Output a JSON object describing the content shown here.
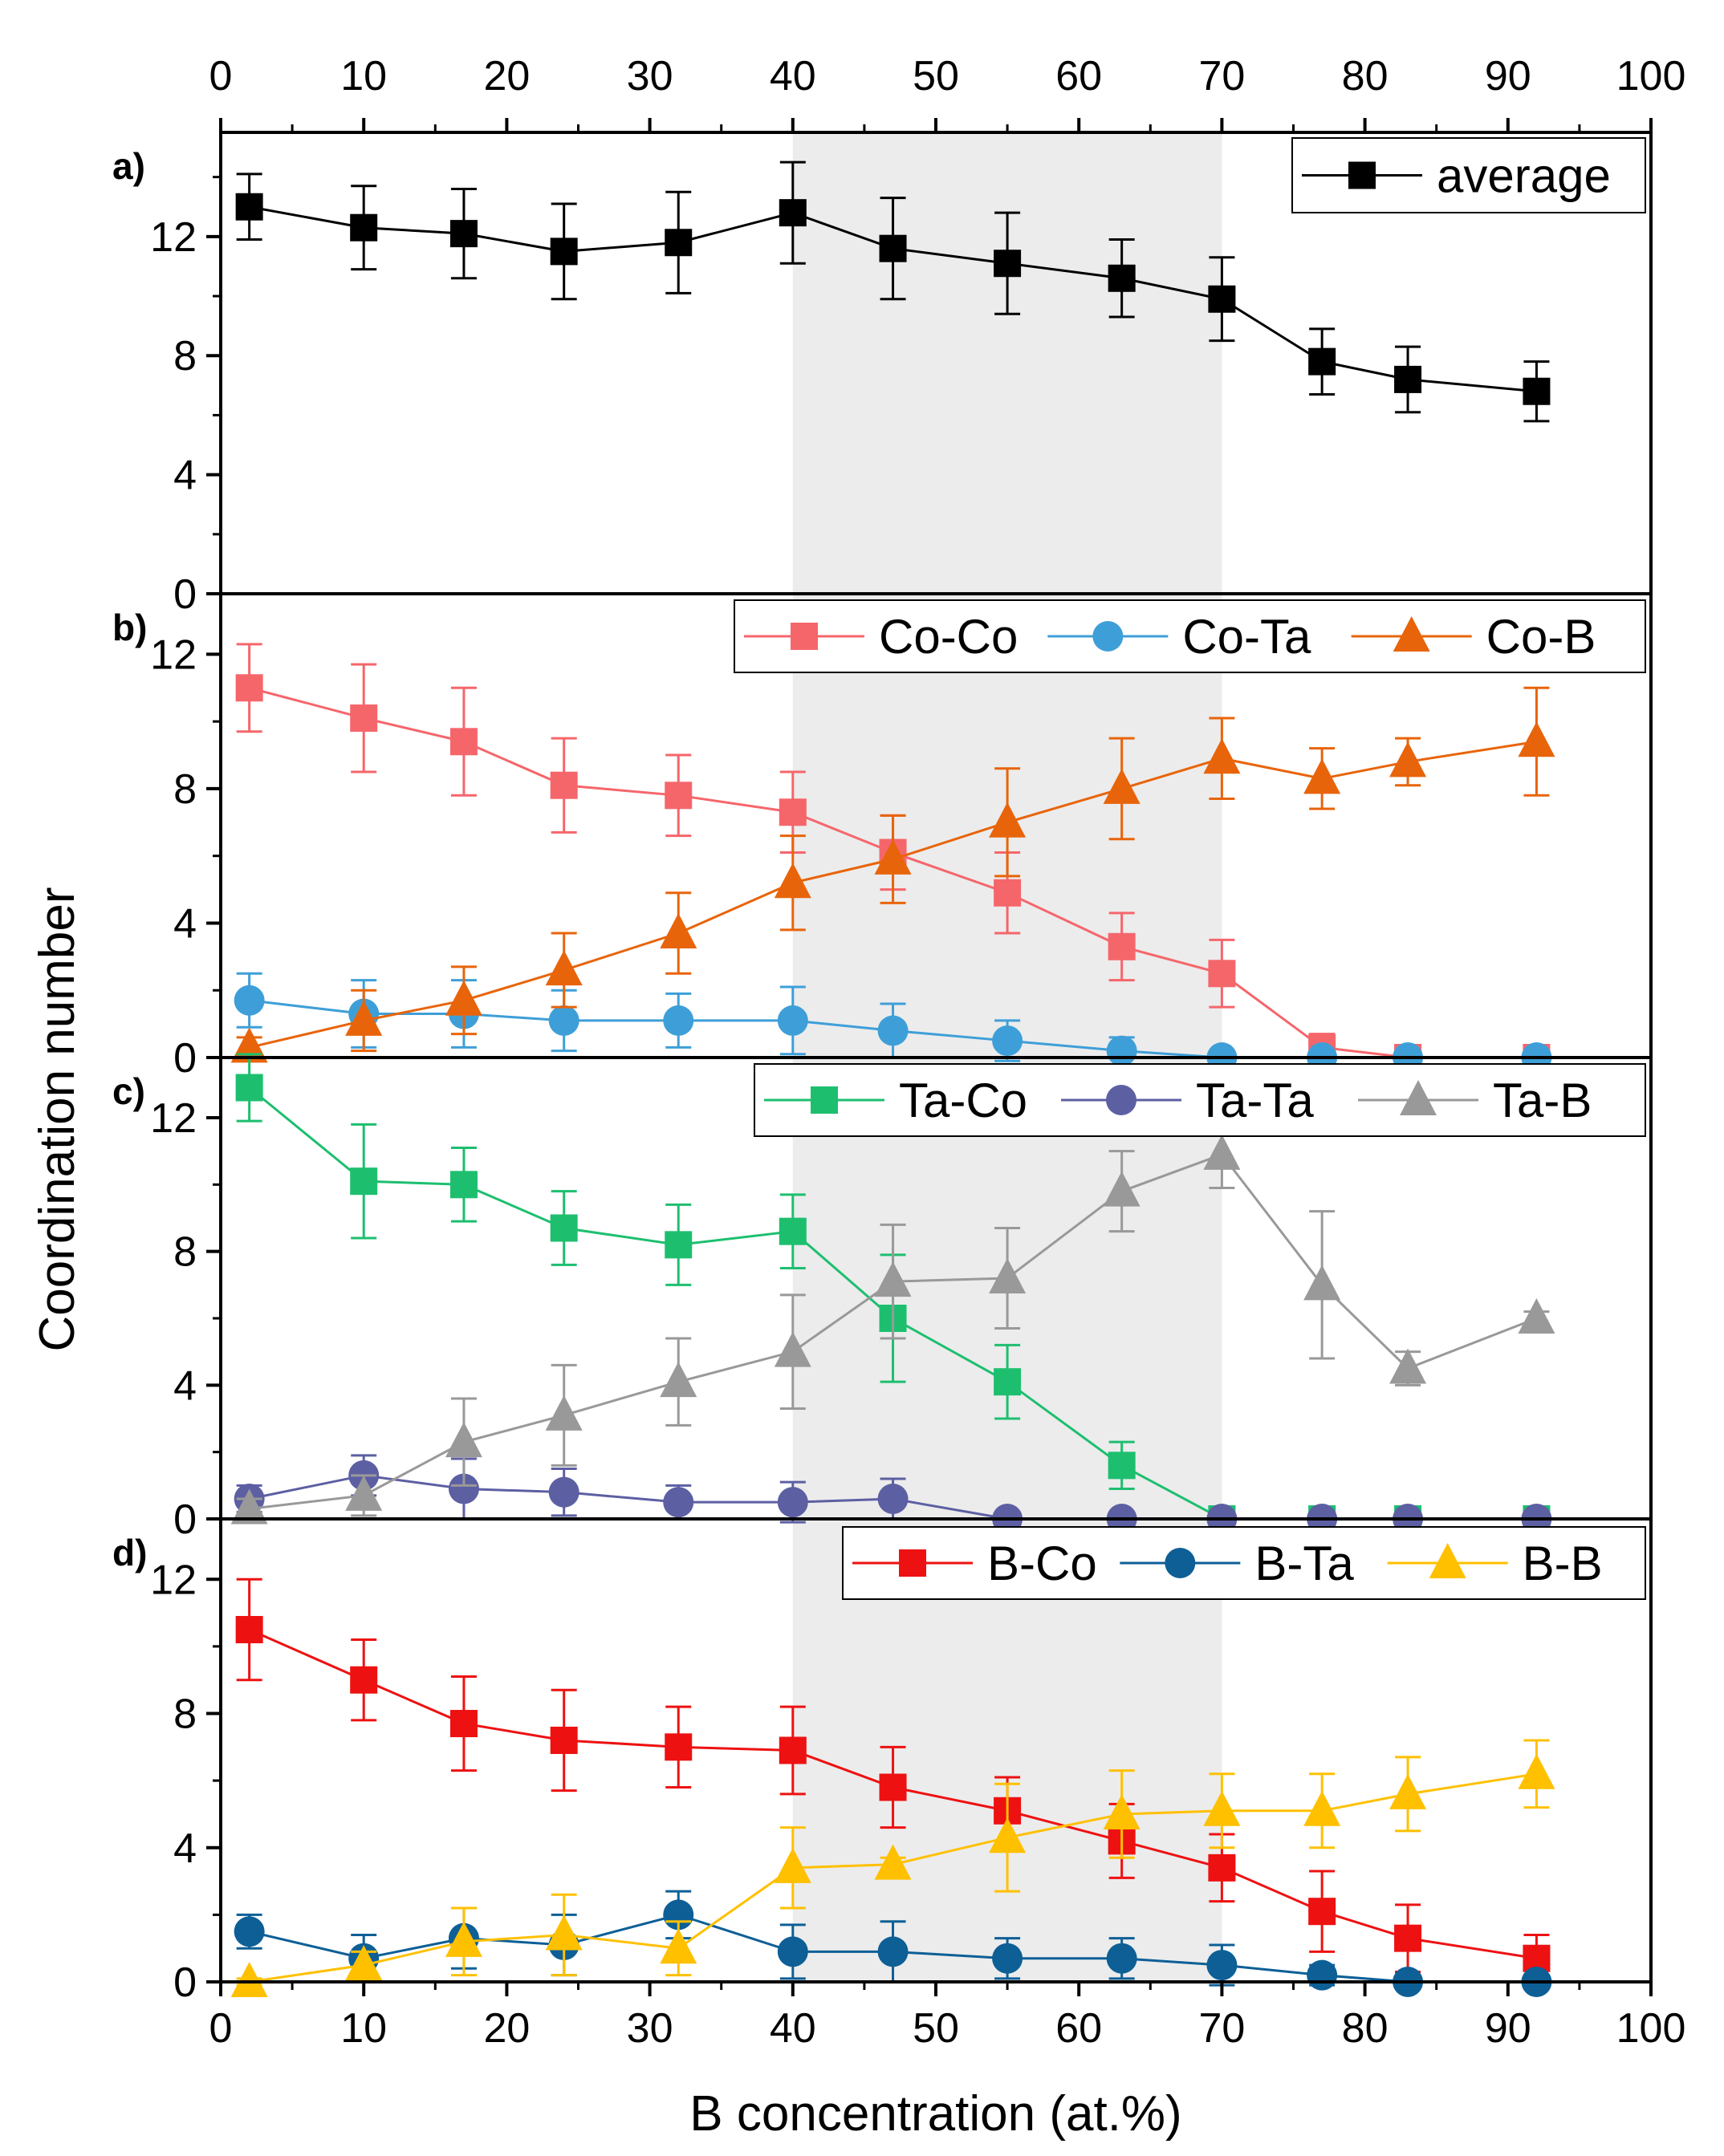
{
  "chart_data": {
    "type": "line",
    "xlabel": "B concentration (at.%)",
    "ylabel": "Coordination number",
    "xlim": [
      0,
      100
    ],
    "x_ticks": [
      0,
      10,
      20,
      30,
      40,
      50,
      60,
      70,
      80,
      90,
      100
    ],
    "x": [
      2,
      10,
      17,
      24,
      32,
      40,
      47,
      55,
      63,
      70,
      77,
      83,
      92
    ],
    "shaded_region": [
      40,
      70
    ],
    "panels": [
      {
        "label": "a)",
        "ylim": [
          0,
          15.5
        ],
        "y_ticks": [
          0,
          4,
          8,
          12
        ],
        "series": [
          {
            "name": "average",
            "color": "#000000",
            "marker": "square",
            "values": [
              13.0,
              12.3,
              12.1,
              11.5,
              11.8,
              12.8,
              11.6,
              11.1,
              10.6,
              9.9,
              7.8,
              7.2,
              6.8
            ],
            "errors": [
              1.1,
              1.4,
              1.5,
              1.6,
              1.7,
              1.7,
              1.7,
              1.7,
              1.3,
              1.4,
              1.1,
              1.1,
              1.0
            ]
          }
        ]
      },
      {
        "label": "b)",
        "ylim": [
          0,
          13.8
        ],
        "y_ticks": [
          0,
          4,
          8,
          12
        ],
        "series": [
          {
            "name": "Co-Co",
            "color": "#f5666b",
            "marker": "square",
            "values": [
              11.0,
              10.1,
              9.4,
              8.1,
              7.8,
              7.3,
              6.1,
              4.9,
              3.3,
              2.5,
              0.3,
              0.0,
              0.0
            ],
            "errors": [
              1.3,
              1.6,
              1.6,
              1.4,
              1.2,
              1.2,
              1.1,
              1.2,
              1.0,
              1.0,
              0.4,
              0.1,
              0.1
            ]
          },
          {
            "name": "Co-Ta",
            "color": "#3e9fd8",
            "marker": "circle",
            "values": [
              1.7,
              1.3,
              1.3,
              1.1,
              1.1,
              1.1,
              0.8,
              0.5,
              0.2,
              0.0,
              0.0,
              0.0,
              0.0
            ],
            "errors": [
              0.8,
              1.0,
              1.0,
              0.9,
              0.8,
              1.0,
              0.8,
              0.6,
              0.4,
              0.1,
              0.1,
              0.1,
              0.1
            ]
          },
          {
            "name": "Co-B",
            "color": "#e8640a",
            "marker": "triangle",
            "values": [
              0.3,
              1.1,
              1.7,
              2.6,
              3.7,
              5.2,
              5.9,
              7.0,
              8.0,
              8.9,
              8.3,
              8.8,
              9.4
            ],
            "errors": [
              0.3,
              0.9,
              1.0,
              1.1,
              1.2,
              1.4,
              1.3,
              1.6,
              1.5,
              1.2,
              0.9,
              0.7,
              1.6
            ]
          }
        ]
      },
      {
        "label": "c)",
        "ylim": [
          0,
          13.8
        ],
        "y_ticks": [
          0,
          4,
          8,
          12
        ],
        "series": [
          {
            "name": "Ta-Co",
            "color": "#1dbf6f",
            "marker": "square",
            "values": [
              12.9,
              10.1,
              10.0,
              8.7,
              8.2,
              8.6,
              6.0,
              4.1,
              1.6,
              0.0,
              0.0,
              0.0,
              0.0
            ],
            "errors": [
              1.0,
              1.7,
              1.1,
              1.1,
              1.2,
              1.1,
              1.9,
              1.1,
              0.7,
              0.1,
              0.1,
              0.1,
              0.1
            ]
          },
          {
            "name": "Ta-Ta",
            "color": "#5d5fa3",
            "marker": "circle",
            "values": [
              0.6,
              1.3,
              0.9,
              0.8,
              0.5,
              0.5,
              0.6,
              0.0,
              0.0,
              0.0,
              0.0,
              0.0,
              0.0
            ],
            "errors": [
              0.4,
              0.6,
              0.9,
              0.7,
              0.5,
              0.6,
              0.6,
              0.1,
              0.1,
              0.1,
              0.1,
              0.1,
              0.1
            ]
          },
          {
            "name": "Ta-B",
            "color": "#999999",
            "marker": "triangle",
            "values": [
              0.3,
              0.7,
              2.3,
              3.1,
              4.1,
              5.0,
              7.1,
              7.2,
              9.8,
              10.9,
              7.0,
              4.5,
              6.0
            ],
            "errors": [
              0.3,
              0.6,
              1.3,
              1.5,
              1.3,
              1.7,
              1.7,
              1.5,
              1.2,
              1.0,
              2.2,
              0.5,
              0.2
            ]
          }
        ]
      },
      {
        "label": "d)",
        "ylim": [
          0,
          13.8
        ],
        "y_ticks": [
          0,
          4,
          8,
          12
        ],
        "series": [
          {
            "name": "B-Co",
            "color": "#ee1111",
            "marker": "square",
            "values": [
              10.5,
              9.0,
              7.7,
              7.2,
              7.0,
              6.9,
              5.8,
              5.1,
              4.2,
              3.4,
              2.1,
              1.3,
              0.7
            ],
            "errors": [
              1.5,
              1.2,
              1.4,
              1.5,
              1.2,
              1.3,
              1.2,
              1.0,
              1.1,
              1.0,
              1.2,
              1.0,
              0.7
            ]
          },
          {
            "name": "B-Ta",
            "color": "#0d5f96",
            "marker": "circle",
            "values": [
              1.5,
              0.7,
              1.3,
              1.1,
              2.0,
              0.9,
              0.9,
              0.7,
              0.7,
              0.5,
              0.2,
              0.0,
              0.0
            ],
            "errors": [
              0.5,
              0.7,
              0.9,
              0.9,
              0.7,
              0.8,
              0.9,
              0.6,
              0.6,
              0.6,
              0.3,
              0.1,
              0.1
            ]
          },
          {
            "name": "B-B",
            "color": "#ffc000",
            "marker": "triangle",
            "values": [
              0.0,
              0.5,
              1.2,
              1.4,
              1.0,
              3.4,
              3.5,
              4.3,
              5.0,
              5.1,
              5.1,
              5.6,
              6.2
            ],
            "errors": [
              0.1,
              0.4,
              1.0,
              1.2,
              0.8,
              1.2,
              0.2,
              1.6,
              1.3,
              1.1,
              1.1,
              1.1,
              1.0
            ]
          }
        ]
      }
    ]
  }
}
